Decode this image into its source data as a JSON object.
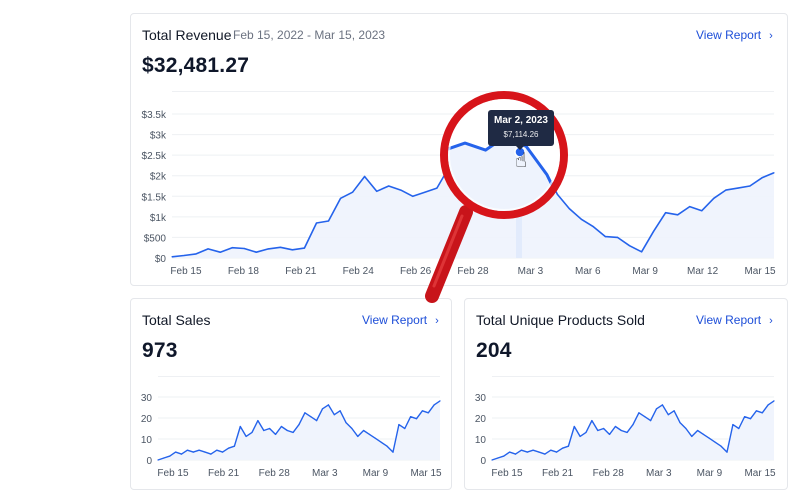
{
  "revenue": {
    "title": "Total Revenue",
    "date_range": "Feb 15, 2022 - Mar 15, 2023",
    "amount": "$32,481.27",
    "view_report": "View Report",
    "tooltip": {
      "date": "Mar 2, 2023",
      "value": "$7,114.26"
    }
  },
  "sales": {
    "title": "Total Sales",
    "amount": "973",
    "view_report": "View Report"
  },
  "products": {
    "title": "Total Unique Products Sold",
    "amount": "204",
    "view_report": "View Report"
  },
  "colors": {
    "line": "#2563eb",
    "fill": "#eef3fd",
    "accent_link": "#1d4ed8",
    "magnifier": "#d7141a",
    "tooltip_bg": "#1f2a44"
  },
  "chart_data": [
    {
      "type": "area",
      "title": "",
      "y_ticks": [
        "$0",
        "$500",
        "$1k",
        "$1.5k",
        "$2k",
        "$2.5k",
        "$3k",
        "$3.5k"
      ],
      "x_ticks": [
        "Feb 15",
        "Feb 18",
        "Feb 21",
        "Feb 24",
        "Feb 26",
        "Feb 28",
        "Mar 3",
        "Mar 6",
        "Mar 9",
        "Mar 12",
        "Mar 15"
      ],
      "ylim": [
        0,
        3500
      ],
      "series": [
        {
          "values": [
            30,
            60,
            100,
            220,
            140,
            250,
            230,
            140,
            220,
            260,
            200,
            240,
            850,
            900,
            1450,
            1600,
            1980,
            1620,
            1750,
            1650,
            1500,
            1600,
            1700,
            2200,
            2100,
            1800,
            2500,
            2600,
            2500,
            2700,
            2550,
            2150,
            1550,
            1200,
            940,
            760,
            520,
            500,
            300,
            150,
            650,
            1100,
            1050,
            1250,
            1150,
            1450,
            1650,
            1700,
            1750,
            1950,
            2070
          ]
        }
      ],
      "grid": true
    },
    {
      "type": "line",
      "title": "",
      "y_ticks": [
        "0",
        "10",
        "20",
        "30"
      ],
      "x_ticks": [
        "Feb 15",
        "Feb 21",
        "Feb 28",
        "Mar 3",
        "Mar 9",
        "Mar 15"
      ],
      "ylim": [
        0,
        32
      ],
      "series": [
        {
          "values": [
            0,
            1,
            2,
            4,
            3,
            5,
            4,
            5,
            4,
            3,
            5,
            4,
            6,
            7,
            17,
            12,
            14,
            20,
            15,
            16,
            13,
            17,
            15,
            14,
            18,
            24,
            22,
            20,
            26,
            28,
            23,
            25,
            19,
            16,
            12,
            15,
            13,
            11,
            9,
            7,
            4,
            18,
            16,
            22,
            21,
            25,
            24,
            28,
            30
          ]
        }
      ],
      "grid": true
    },
    {
      "type": "line",
      "title": "",
      "y_ticks": [
        "0",
        "10",
        "20",
        "30"
      ],
      "x_ticks": [
        "Feb 15",
        "Feb 21",
        "Feb 28",
        "Mar 3",
        "Mar 9",
        "Mar 15"
      ],
      "ylim": [
        0,
        32
      ],
      "series": [
        {
          "values": [
            0,
            1,
            2,
            4,
            3,
            5,
            4,
            5,
            4,
            3,
            5,
            4,
            6,
            7,
            17,
            12,
            14,
            20,
            15,
            16,
            13,
            17,
            15,
            14,
            18,
            24,
            22,
            20,
            26,
            28,
            23,
            25,
            19,
            16,
            12,
            15,
            13,
            11,
            9,
            7,
            4,
            18,
            16,
            22,
            21,
            25,
            24,
            28,
            30
          ]
        }
      ],
      "grid": true
    }
  ]
}
